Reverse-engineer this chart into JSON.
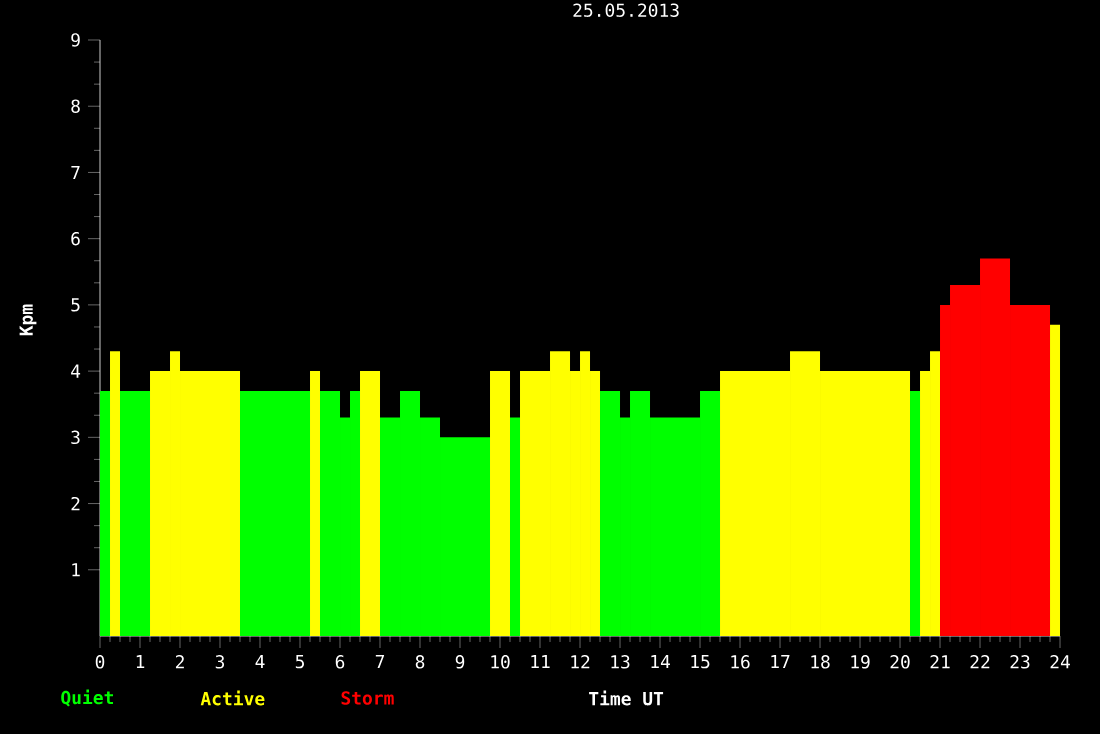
{
  "chart_data": {
    "type": "histogram",
    "title": "25.05.2013",
    "xlabel": "Time UT",
    "ylabel": "Kpm",
    "bins": [
      0,
      0.25,
      0.5,
      1.25,
      1.75,
      2,
      3.5,
      5.25,
      5.5,
      6,
      6.25,
      6.5,
      7,
      7.5,
      8,
      8.5,
      9.75,
      10.25,
      10.5,
      11.25,
      11.75,
      12,
      12.25,
      12.5,
      13,
      13.25,
      13.75,
      15,
      15.5,
      17.25,
      18,
      20.25,
      20.5,
      20.75,
      21,
      21.25,
      22,
      22.75,
      23.75,
      24
    ],
    "series": [
      {
        "name": "Quiet",
        "color": "#00ff00",
        "values": [
          3.7,
          null,
          3.7,
          null,
          null,
          null,
          3.7,
          null,
          3.7,
          3.3,
          3.7,
          null,
          3.3,
          3.7,
          3.3,
          3,
          null,
          3.3,
          null,
          null,
          null,
          null,
          null,
          3.7,
          3.3,
          3.7,
          3.3,
          3.7,
          null,
          null,
          null,
          3.7,
          null,
          null,
          null,
          null,
          null,
          null,
          null
        ]
      },
      {
        "name": "Active",
        "color": "#ffff00",
        "values": [
          null,
          4.3,
          null,
          4,
          4.3,
          4,
          null,
          4,
          null,
          null,
          null,
          4,
          null,
          null,
          null,
          null,
          4,
          null,
          4,
          4.3,
          4,
          4.3,
          4,
          null,
          null,
          null,
          null,
          null,
          4,
          4.3,
          4,
          null,
          4,
          4.3,
          null,
          null,
          null,
          null,
          4.7
        ]
      },
      {
        "name": "Storm",
        "color": "#ff0000",
        "values": [
          null,
          null,
          null,
          null,
          null,
          null,
          null,
          null,
          null,
          null,
          null,
          null,
          null,
          null,
          null,
          null,
          null,
          null,
          null,
          null,
          null,
          null,
          null,
          null,
          null,
          null,
          null,
          null,
          null,
          null,
          null,
          null,
          null,
          null,
          5,
          5.3,
          5.7,
          5,
          null
        ]
      }
    ],
    "xlim": [
      0,
      24
    ],
    "xticks": [
      0,
      1,
      2,
      3,
      4,
      5,
      6,
      7,
      8,
      9,
      10,
      11,
      12,
      13,
      14,
      15,
      16,
      17,
      18,
      19,
      20,
      21,
      22,
      23,
      24
    ],
    "ylim": [
      0,
      9
    ],
    "yticks": [
      1,
      2,
      3,
      4,
      5,
      6,
      7,
      8,
      9
    ],
    "grid": false,
    "legend": "bottom left"
  }
}
